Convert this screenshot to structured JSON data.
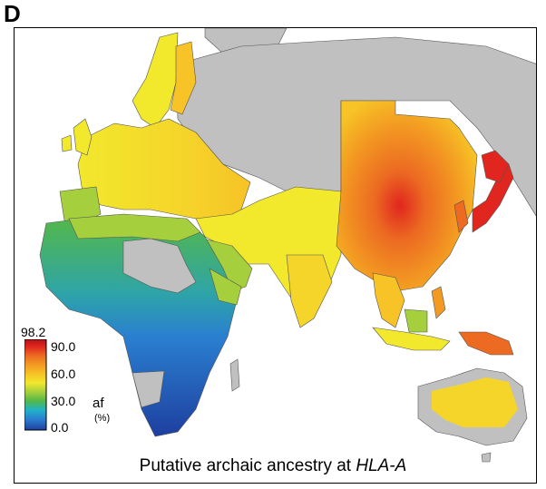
{
  "panel_label": "D",
  "caption": {
    "text": "Putative archaic ancestry at ",
    "gene": "HLA-A"
  },
  "legend": {
    "max_label": "98.2",
    "ticks": [
      "90.0",
      "60.0",
      "30.0",
      "0.0"
    ],
    "unit": "af",
    "unit_sub": "(%)",
    "colors": [
      "#1e3fa0",
      "#2a7fd0",
      "#1fb3c8",
      "#54b848",
      "#a5cf3c",
      "#f2e82c",
      "#f7c326",
      "#f39a22",
      "#ec6a22",
      "#e0261e",
      "#b31217"
    ],
    "no_data_color": "#c0c0c0"
  }
}
